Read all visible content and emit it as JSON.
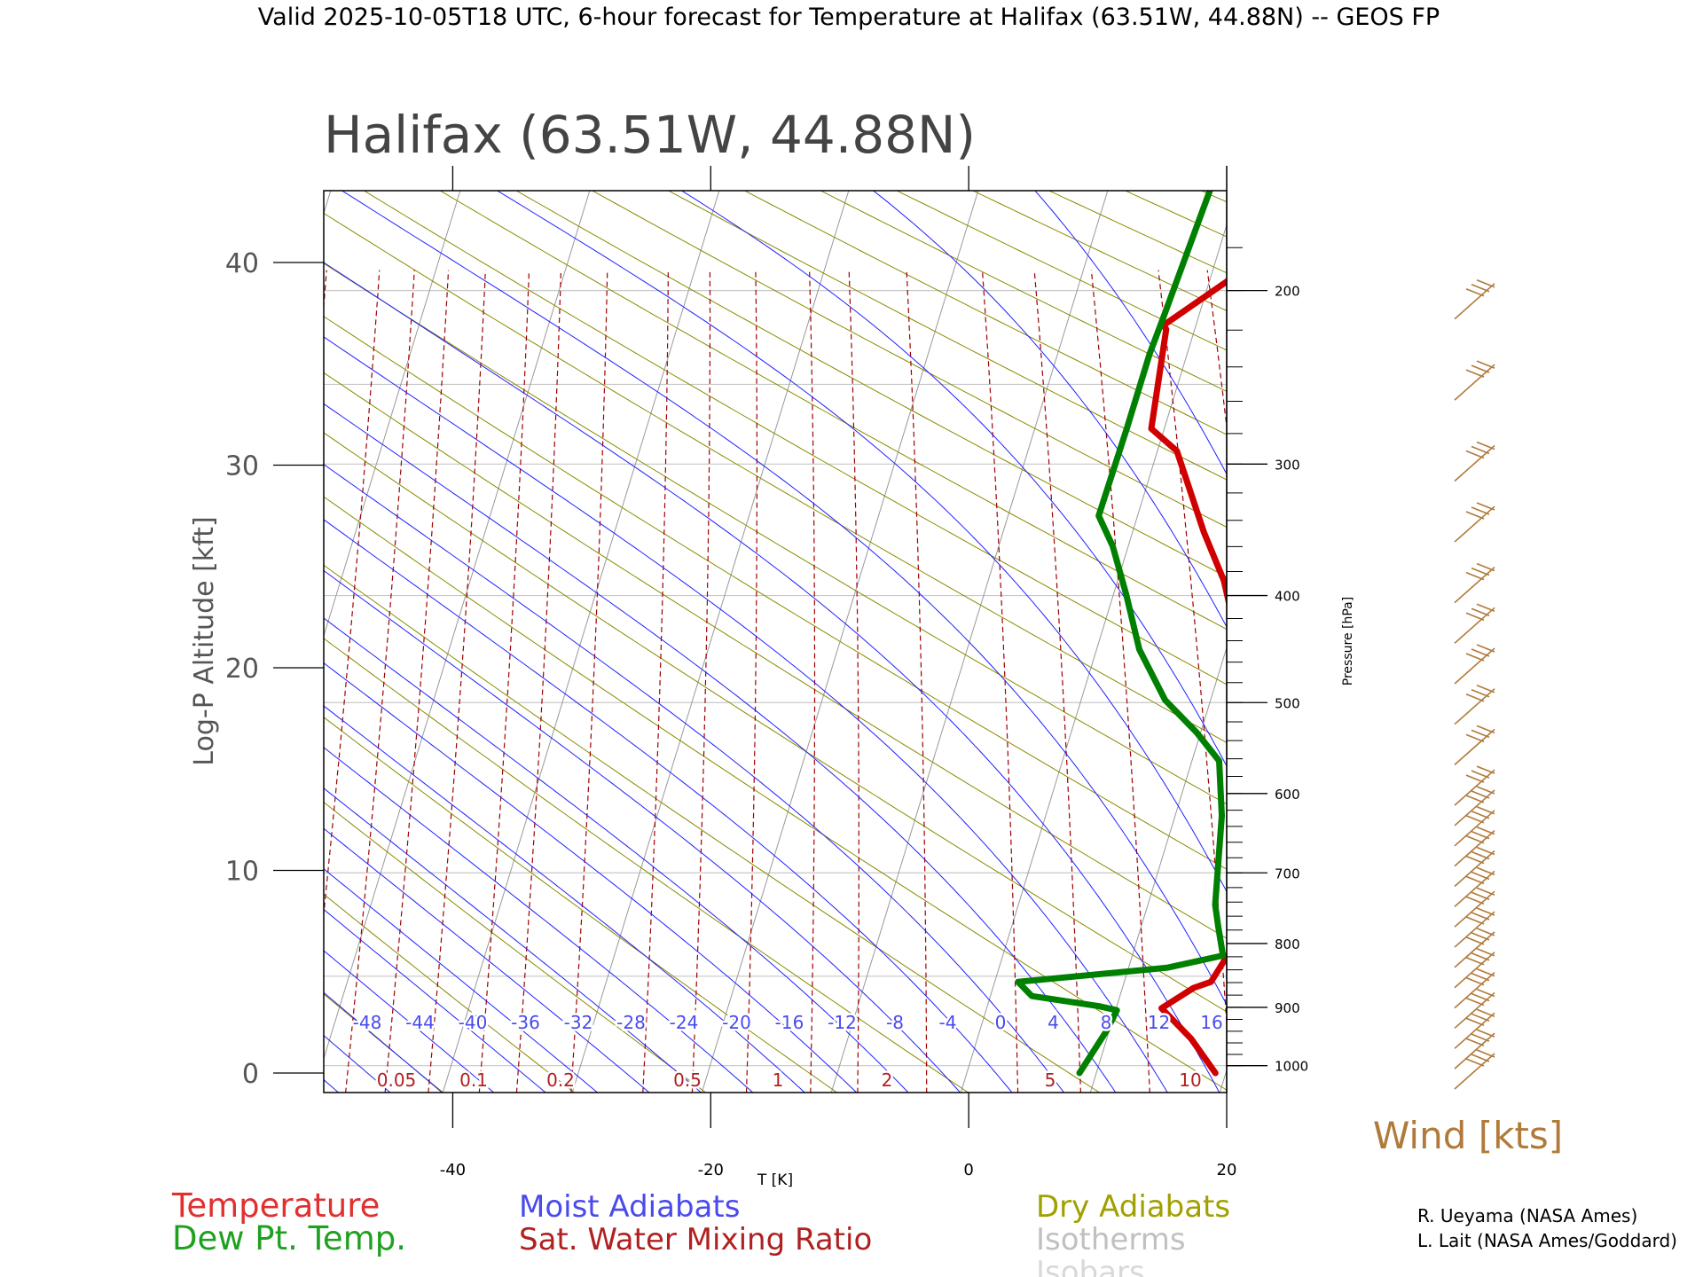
{
  "chart_data": {
    "type": "line",
    "header": "Valid 2025-10-05T18 UTC, 6-hour forecast for Temperature at Halifax (63.51W, 44.88N) -- GEOS FP",
    "title": "Halifax (63.51W, 44.88N)",
    "xlabel": "T [K]",
    "ylabel": "Log-P Altitude [kft]",
    "y2label": "Pressure [hPa]",
    "xlim": [
      -50,
      20
    ],
    "ylim": [
      -1,
      43.6
    ],
    "log_scale": true,
    "grid": true,
    "x_ticks": [
      "-40",
      "-20",
      "0",
      "20"
    ],
    "y_ticks": [
      "0",
      "10",
      "20",
      "30",
      "40"
    ],
    "pressure_ticks": [
      "1000",
      "900",
      "800",
      "700",
      "600",
      "500",
      "400",
      "300",
      "200"
    ],
    "moist_adiabat_labels": [
      "-48",
      "-44",
      "-40",
      "-36",
      "-32",
      "-28",
      "-24",
      "-20",
      "-16",
      "-12",
      "-8",
      "-4",
      "0",
      "4",
      "8",
      "12",
      "16"
    ],
    "mixing_ratio_labels": [
      "0.05",
      "0.1",
      "0.2",
      "0.5",
      "1",
      "2",
      "5",
      "10"
    ],
    "series": [
      {
        "name": "Temperature",
        "color": "#d00000",
        "points": [
          [
            19.2,
            0
          ],
          [
            16.5,
            1.7
          ],
          [
            13.5,
            3.2
          ],
          [
            15.5,
            4.2
          ],
          [
            16.7,
            4.5
          ],
          [
            17.2,
            5.5
          ],
          [
            17.8,
            6.5
          ],
          [
            16.6,
            8
          ],
          [
            16.2,
            10
          ],
          [
            15.6,
            13
          ],
          [
            14.7,
            15.3
          ],
          [
            12.8,
            19
          ],
          [
            11.3,
            20.6
          ],
          [
            8.2,
            24.3
          ],
          [
            5.5,
            26.7
          ],
          [
            1.5,
            30.7
          ],
          [
            -1.0,
            31.8
          ],
          [
            -2.2,
            36.7
          ],
          [
            -2.5,
            36.9
          ],
          [
            0,
            38.3
          ],
          [
            3.0,
            40
          ],
          [
            8.1,
            43.6
          ]
        ]
      },
      {
        "name": "Dew Pt. Temp.",
        "color": "#008000",
        "points": [
          [
            8.7,
            0
          ],
          [
            9.8,
            2.1
          ],
          [
            10.1,
            3.1
          ],
          [
            8.6,
            3.3
          ],
          [
            3.2,
            3.8
          ],
          [
            1.8,
            4.5
          ],
          [
            13,
            5.2
          ],
          [
            17.0,
            5.8
          ],
          [
            15.9,
            7.3
          ],
          [
            15.2,
            8.3
          ],
          [
            13.6,
            12.7
          ],
          [
            12.1,
            15.4
          ],
          [
            9.7,
            16.8
          ],
          [
            6.5,
            18.4
          ],
          [
            3.3,
            20.9
          ],
          [
            1.0,
            23.6
          ],
          [
            -1.2,
            26
          ],
          [
            -3.0,
            27.5
          ],
          [
            -2.9,
            31.8
          ],
          [
            -2.9,
            35.5
          ],
          [
            -2.7,
            37.3
          ],
          [
            -2.1,
            43.6
          ]
        ]
      }
    ],
    "legend": {
      "temperature": "Temperature",
      "dewpoint": "Dew Pt. Temp.",
      "moist": "Moist Adiabats",
      "mixing": "Sat. Water Mixing Ratio",
      "dry": "Dry Adiabats",
      "isotherms": "Isotherms",
      "isobars": "Isobars"
    },
    "wind_label": "Wind [kts]",
    "credits": [
      "R. Ueyama (NASA Ames)",
      "L. Lait (NASA Ames/Goddard)"
    ],
    "colors": {
      "temperature": "#d00000",
      "dewpoint": "#008000",
      "moist": "#2020ff",
      "mixing": "#a00000",
      "dry": "#8a8a00",
      "isotherm": "#999999",
      "isobar": "#c8c8c8",
      "wind": "#b07a3a",
      "text": "#555555",
      "moist_label": "#4a4aee",
      "mixing_label": "#b02020",
      "dry_label": "#a0a000",
      "isotherm_label": "#c0c0c0",
      "isobar_label": "#d8d8d8"
    }
  }
}
